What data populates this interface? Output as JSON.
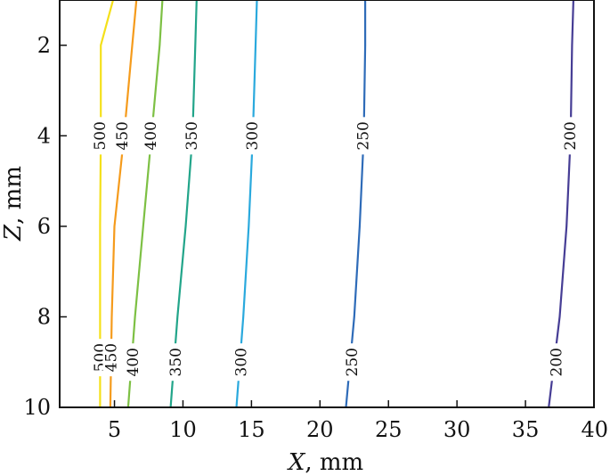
{
  "chart_data": {
    "type": "contour",
    "title": "",
    "xlabel": {
      "var": "X",
      "unit": ", mm"
    },
    "ylabel": {
      "var": "Z",
      "unit": ", mm"
    },
    "xlim": [
      1,
      40
    ],
    "ylim": [
      1,
      10
    ],
    "y_inverted": true,
    "xticks": [
      5,
      10,
      15,
      20,
      25,
      30,
      35,
      40
    ],
    "yticks": [
      2,
      4,
      6,
      8,
      10
    ],
    "grid": false,
    "legend": "none",
    "series": [
      {
        "level": "500",
        "color": "#f4e01a",
        "points": [
          [
            4.9,
            1
          ],
          [
            4.0,
            2
          ],
          [
            4.0,
            4
          ],
          [
            3.95,
            6
          ],
          [
            3.95,
            8
          ],
          [
            3.95,
            10
          ]
        ],
        "label_positions": [
          [
            4,
            4
          ],
          [
            4,
            8.9
          ]
        ]
      },
      {
        "level": "450",
        "color": "#f59b1c",
        "points": [
          [
            6.6,
            1
          ],
          [
            6.3,
            2
          ],
          [
            5.7,
            4
          ],
          [
            5.0,
            6
          ],
          [
            4.8,
            8
          ],
          [
            4.7,
            10
          ]
        ],
        "label_positions": [
          [
            5.6,
            4
          ],
          [
            4.8,
            8.9
          ]
        ]
      },
      {
        "level": "400",
        "color": "#7dc044",
        "points": [
          [
            8.5,
            1
          ],
          [
            8.3,
            2
          ],
          [
            7.7,
            4
          ],
          [
            7.1,
            6
          ],
          [
            6.5,
            8
          ],
          [
            6.0,
            10
          ]
        ],
        "label_positions": [
          [
            7.7,
            4
          ],
          [
            6.4,
            9
          ]
        ]
      },
      {
        "level": "350",
        "color": "#22a58a",
        "points": [
          [
            11.0,
            1
          ],
          [
            10.9,
            2
          ],
          [
            10.7,
            4
          ],
          [
            10.2,
            6
          ],
          [
            9.6,
            8
          ],
          [
            9.1,
            10
          ]
        ],
        "label_positions": [
          [
            10.7,
            4
          ],
          [
            9.5,
            9
          ]
        ]
      },
      {
        "level": "300",
        "color": "#2aa9dd",
        "points": [
          [
            15.4,
            1
          ],
          [
            15.3,
            2
          ],
          [
            15.1,
            4
          ],
          [
            14.8,
            6
          ],
          [
            14.4,
            8
          ],
          [
            13.9,
            10
          ]
        ],
        "label_positions": [
          [
            15.1,
            4
          ],
          [
            14.3,
            9
          ]
        ]
      },
      {
        "level": "250",
        "color": "#2e6bb8",
        "points": [
          [
            23.3,
            1
          ],
          [
            23.3,
            2
          ],
          [
            23.2,
            4
          ],
          [
            22.9,
            6
          ],
          [
            22.5,
            8
          ],
          [
            21.9,
            10
          ]
        ],
        "label_positions": [
          [
            23.2,
            4
          ],
          [
            22.4,
            9
          ]
        ]
      },
      {
        "level": "200",
        "color": "#463d95",
        "points": [
          [
            38.5,
            1
          ],
          [
            38.4,
            2
          ],
          [
            38.3,
            4
          ],
          [
            38.0,
            6
          ],
          [
            37.5,
            8
          ],
          [
            36.7,
            10
          ]
        ],
        "label_positions": [
          [
            38.3,
            4
          ],
          [
            37.3,
            9
          ]
        ]
      }
    ]
  }
}
